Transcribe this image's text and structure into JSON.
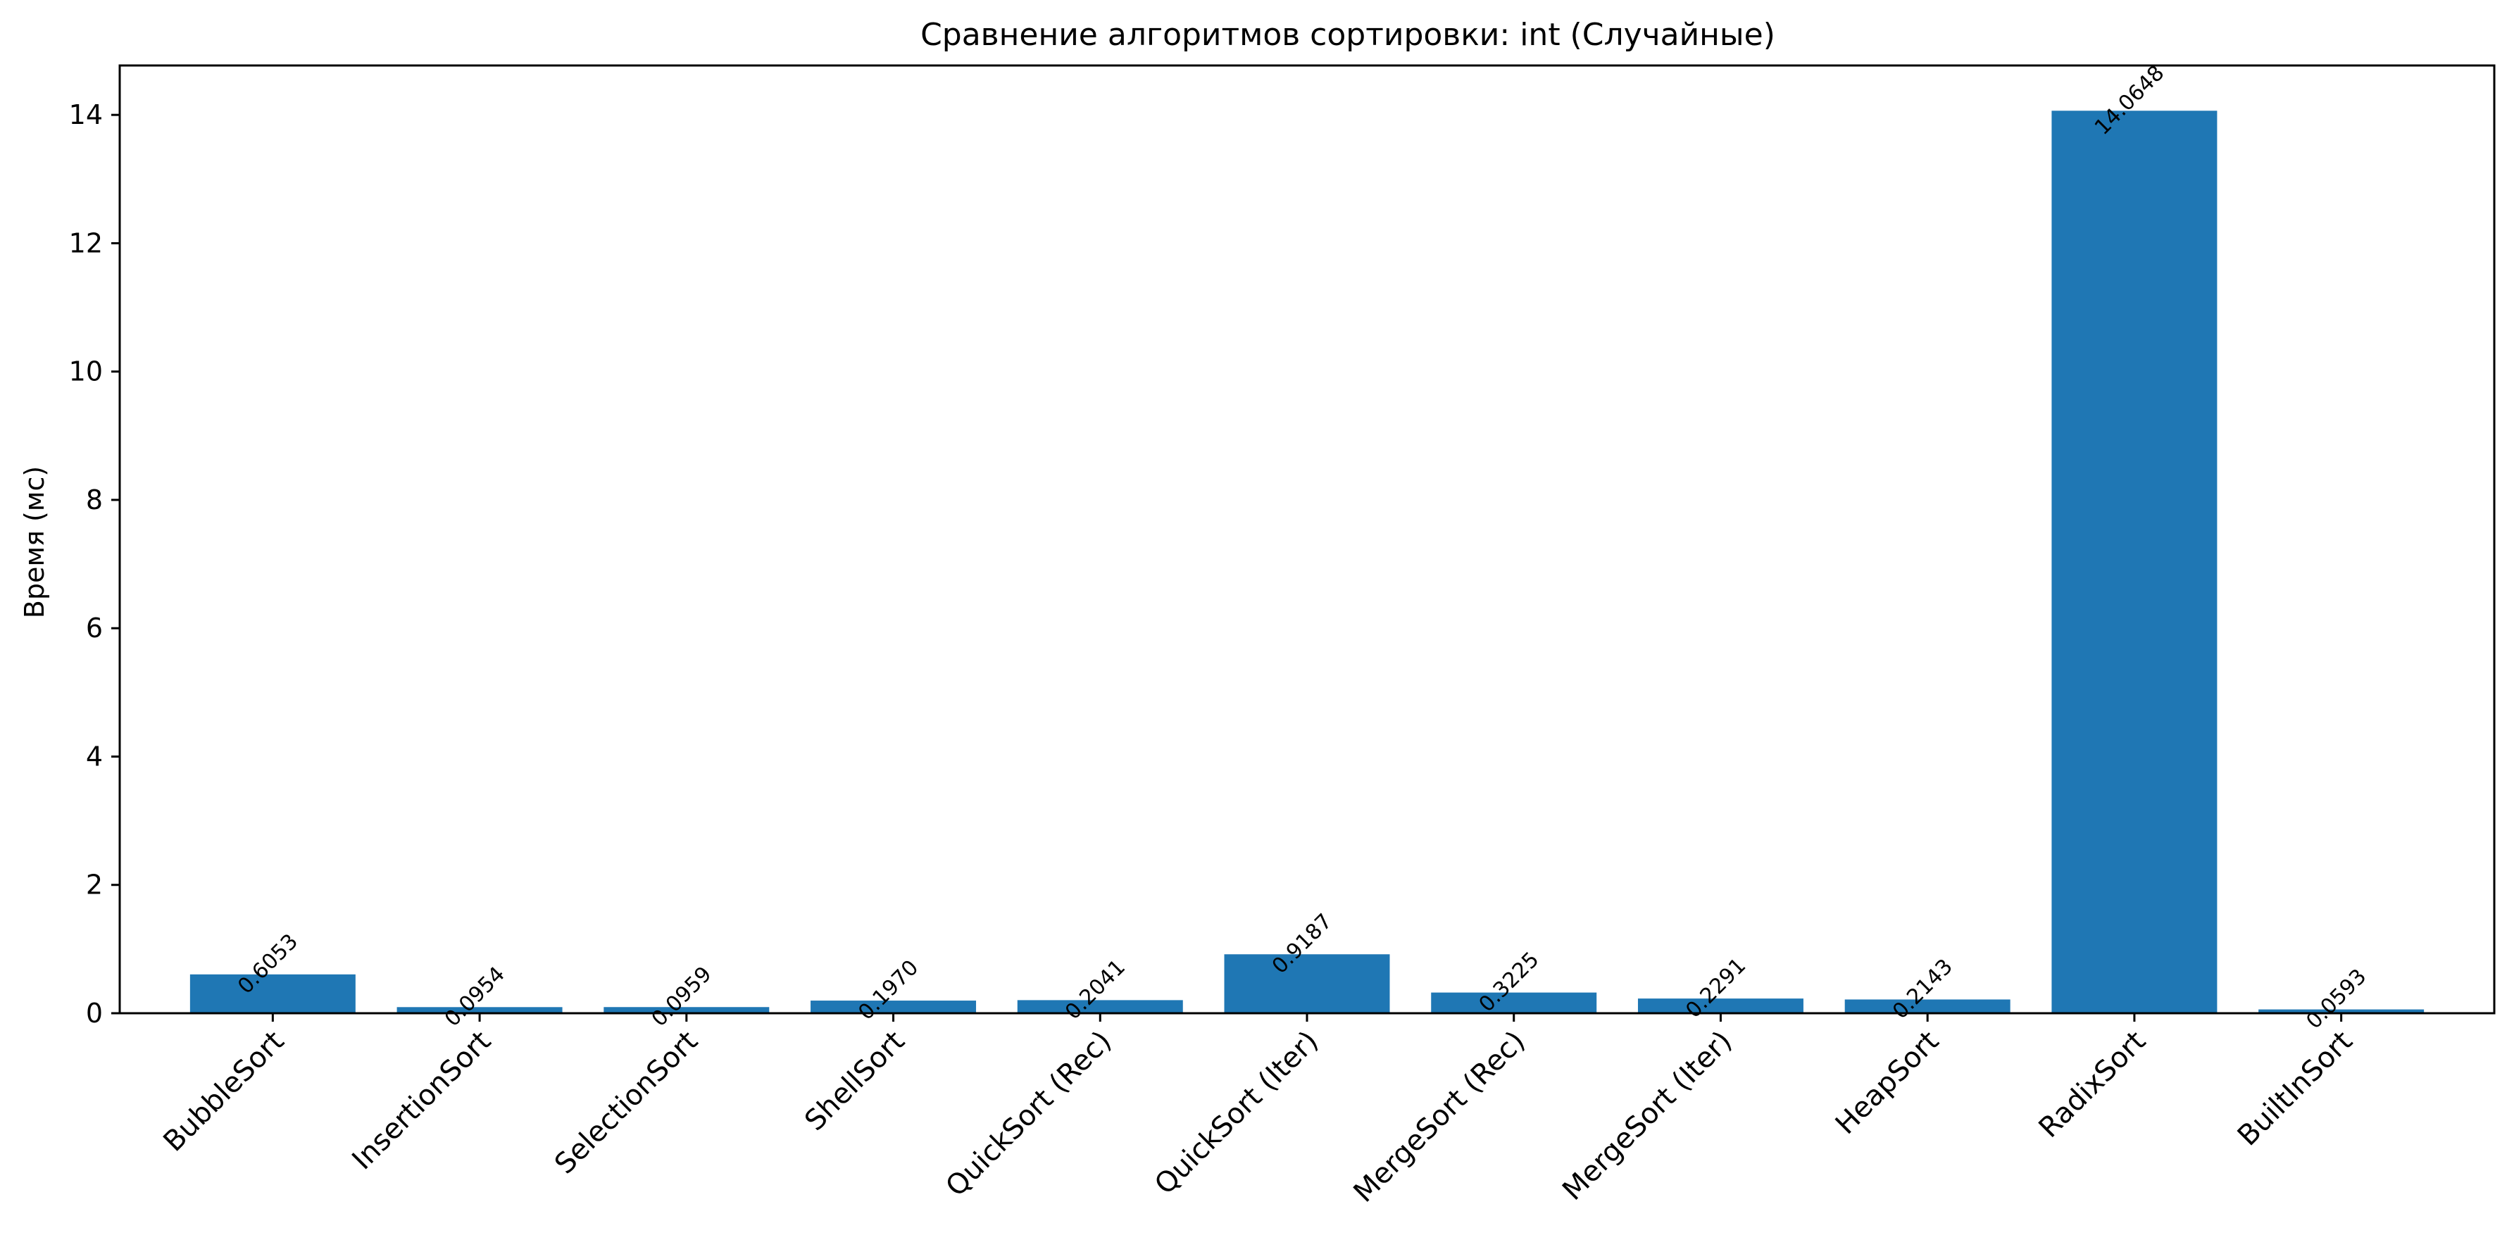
{
  "chart_data": {
    "type": "bar",
    "title": "Сравнение алгоритмов сортировки: int (Случайные)",
    "xlabel": "",
    "ylabel": "Время (мс)",
    "ylim": [
      0,
      14.77
    ],
    "yticks": [
      "0",
      "2",
      "4",
      "6",
      "8",
      "10",
      "12",
      "14"
    ],
    "categories": [
      "BubbleSort",
      "InsertionSort",
      "SelectionSort",
      "ShellSort",
      "QuickSort (Rec)",
      "QuickSort (Iter)",
      "MergeSort (Rec)",
      "MergeSort (Iter)",
      "HeapSort",
      "RadixSort",
      "BuiltInSort"
    ],
    "values": [
      0.6053,
      0.0954,
      0.0959,
      0.197,
      0.2041,
      0.9187,
      0.3225,
      0.2291,
      0.2143,
      14.0648,
      0.0593
    ],
    "value_labels": [
      "0.6053",
      "0.0954",
      "0.0959",
      "0.1970",
      "0.2041",
      "0.9187",
      "0.3225",
      "0.2291",
      "0.2143",
      "14.0648",
      "0.0593"
    ],
    "bar_color": "#1f77b4",
    "grid": false,
    "legend": "none"
  }
}
